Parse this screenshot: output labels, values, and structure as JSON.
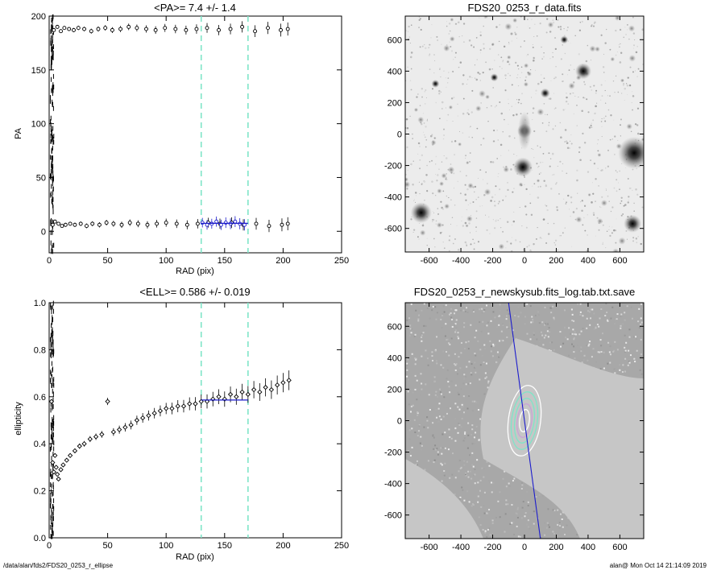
{
  "chart_data": [
    {
      "type": "scatter",
      "title": "<PA>=   7.4 +/-   1.4",
      "xlabel": "RAD (pix)",
      "ylabel": "PA",
      "xlim": [
        0,
        250
      ],
      "ylim": [
        -20,
        200
      ],
      "xticks": [
        0,
        50,
        100,
        150,
        200,
        250
      ],
      "yticks": [
        0,
        50,
        100,
        150,
        200
      ],
      "vlines": [
        130,
        170
      ],
      "fit_line": {
        "x": [
          130,
          170
        ],
        "y": 7.4
      },
      "series": [
        {
          "marker": "open-circle",
          "color": "#000000",
          "x": [
            3,
            5,
            8,
            11,
            14,
            18,
            22,
            27,
            32,
            37,
            43,
            49,
            55,
            62,
            69,
            76,
            84,
            92,
            100,
            109,
            118,
            127,
            136,
            146,
            156,
            166,
            177,
            188,
            199,
            204
          ],
          "y": [
            6,
            9,
            7,
            5,
            6,
            7,
            6,
            7,
            5,
            7,
            6,
            8,
            7,
            6,
            8,
            7,
            6,
            7,
            8,
            7,
            6,
            7,
            8,
            7,
            8,
            6,
            7,
            5,
            6,
            7
          ]
        },
        {
          "marker": "open-circle",
          "color": "#000000",
          "x": [
            4,
            7,
            10,
            13,
            17,
            21,
            25,
            30,
            36,
            42,
            48,
            54,
            61,
            68,
            75,
            83,
            91,
            99,
            108,
            117,
            126,
            135,
            145,
            155,
            165,
            176,
            187,
            198,
            204
          ],
          "y": [
            187,
            190,
            186,
            189,
            188,
            187,
            189,
            188,
            186,
            188,
            189,
            187,
            188,
            190,
            189,
            188,
            187,
            189,
            188,
            187,
            188,
            189,
            187,
            188,
            190,
            186,
            189,
            187,
            188
          ]
        },
        {
          "marker": "open-circle",
          "color": "#1c1ccc",
          "x": [
            131,
            135,
            139,
            143,
            147,
            151,
            155,
            159,
            163,
            167
          ],
          "y": [
            8,
            6,
            7,
            9,
            6,
            8,
            7,
            9,
            7,
            6
          ]
        }
      ]
    },
    {
      "type": "image",
      "title": "FDS20_0253_r_data.fits",
      "xlim": [
        -750,
        750
      ],
      "ylim": [
        -750,
        750
      ],
      "xticks": [
        -600,
        -400,
        -200,
        0,
        200,
        400,
        600
      ],
      "yticks": [
        -600,
        -400,
        -200,
        0,
        200,
        400,
        600
      ],
      "colormap": "inverted grayscale"
    },
    {
      "type": "scatter",
      "title": "<ELL>= 0.586 +/-  0.019",
      "xlabel": "RAD (pix)",
      "ylabel": "ellipticity",
      "xlim": [
        0,
        250
      ],
      "ylim": [
        0,
        1.0
      ],
      "xticks": [
        0,
        50,
        100,
        150,
        200,
        250
      ],
      "yticks": [
        0.0,
        0.2,
        0.4,
        0.6,
        0.8,
        1.0
      ],
      "yticklabels": [
        "0.0",
        "0.2",
        "0.4",
        "0.6",
        "0.8",
        "1.0"
      ],
      "vlines": [
        130,
        170
      ],
      "fit_line": {
        "x": [
          130,
          170
        ],
        "y": 0.586
      },
      "series": [
        {
          "marker": "open-diamond",
          "color": "#000000",
          "x": [
            2,
            3,
            4,
            5,
            6,
            7,
            8,
            10,
            12,
            15,
            18,
            22,
            26,
            30,
            35,
            40,
            45,
            50,
            55,
            60,
            65,
            70,
            75,
            80,
            85,
            90,
            95,
            100,
            105,
            110,
            115,
            120,
            125,
            130,
            135,
            140,
            145,
            150,
            155,
            160,
            165,
            170,
            175,
            180,
            185,
            190,
            195,
            200,
            205
          ],
          "y": [
            0.58,
            0.32,
            0.28,
            0.35,
            0.3,
            0.27,
            0.25,
            0.29,
            0.31,
            0.33,
            0.35,
            0.37,
            0.39,
            0.4,
            0.42,
            0.43,
            0.44,
            0.58,
            0.45,
            0.46,
            0.47,
            0.48,
            0.5,
            0.51,
            0.52,
            0.53,
            0.54,
            0.55,
            0.55,
            0.56,
            0.56,
            0.57,
            0.57,
            0.58,
            0.58,
            0.59,
            0.6,
            0.59,
            0.61,
            0.6,
            0.62,
            0.61,
            0.63,
            0.62,
            0.64,
            0.63,
            0.65,
            0.66,
            0.67
          ]
        }
      ]
    },
    {
      "type": "image",
      "title": "FDS20_0253_r_newskysub.fits_log.tab.txt.save",
      "xlim": [
        -750,
        750
      ],
      "ylim": [
        -750,
        750
      ],
      "xticks": [
        -600,
        -400,
        -200,
        0,
        200,
        400,
        600
      ],
      "yticks": [
        -600,
        -400,
        -200,
        0,
        200,
        400,
        600
      ],
      "overlay": "ellipse isophotes and position-angle line"
    }
  ],
  "footer": {
    "left": "/data/alan/fds2/FDS20_0253_r_ellipse",
    "right": "alan@  Mon Oct 14 21:14:09 2019"
  },
  "colors": {
    "axis": "#000000",
    "vline": "#7fe5c8",
    "fit": "#1c1ccc",
    "image_bg": "#ececec",
    "mask_gray": "#c6c6c6"
  }
}
